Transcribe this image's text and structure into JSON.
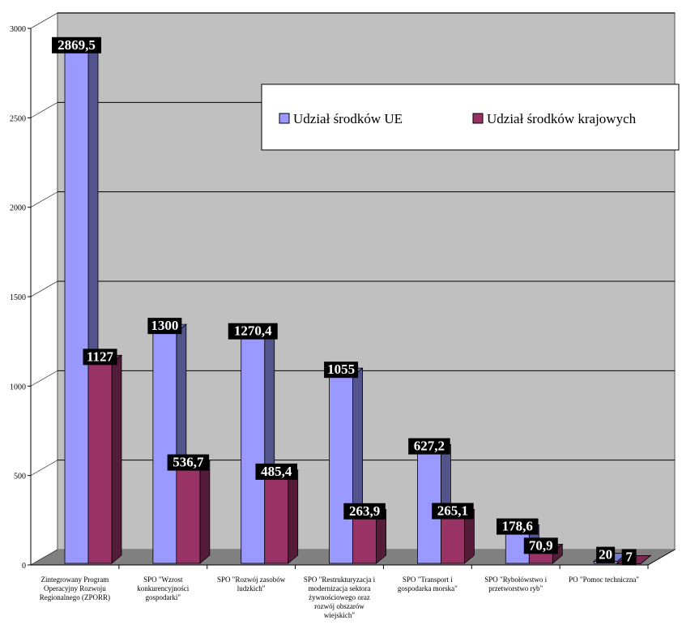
{
  "chart_data": {
    "type": "bar",
    "title": "",
    "xlabel": "",
    "ylabel": "",
    "ylim": [
      0,
      3000
    ],
    "yticks": [
      0,
      500,
      1000,
      1500,
      2000,
      2500,
      3000
    ],
    "grid": true,
    "legend_position": "top-right",
    "categories": [
      [
        "Zintegrowany Program",
        "Operacyjny Rozwoju",
        "Regionalnego (ZPORR)"
      ],
      [
        "SPO \"Wzrost",
        "konkurencyjności",
        "gospodarki\""
      ],
      [
        "SPO \"Rozwój zasobów",
        "ludzkich\""
      ],
      [
        "SPO \"Restrukturyzacja i",
        "modernizacja sektora",
        "żywnościowego oraz",
        "rozwój obszarów",
        "wiejskich\""
      ],
      [
        "SPO \"Transport i",
        "gospodarka morska\""
      ],
      [
        "SPO \"Rybołówstwo i",
        "przetworstwo ryb\""
      ],
      [
        "PO \"Pomoc techniczna\""
      ]
    ],
    "series": [
      {
        "name": "Udział środków UE",
        "values": [
          2869.5,
          1300,
          1270.4,
          1055,
          627.2,
          178.6,
          20
        ],
        "labels": [
          "2869,5",
          "1300",
          "1270,4",
          "1055",
          "627,2",
          "178,6",
          "20"
        ],
        "color": "#9999ff"
      },
      {
        "name": "Udział środków krajowych",
        "values": [
          1127,
          536.7,
          485.4,
          263.9,
          265.1,
          70.9,
          7
        ],
        "labels": [
          "1127",
          "536,7",
          "485,4",
          "263,9",
          "265,1",
          "70,9",
          "7"
        ],
        "color": "#993366"
      }
    ],
    "colors": {
      "wall": "#c0c0c0",
      "floor": "#808080",
      "grid": "#000000",
      "label_bg": "#000000",
      "label_text": "#ffffff"
    }
  }
}
